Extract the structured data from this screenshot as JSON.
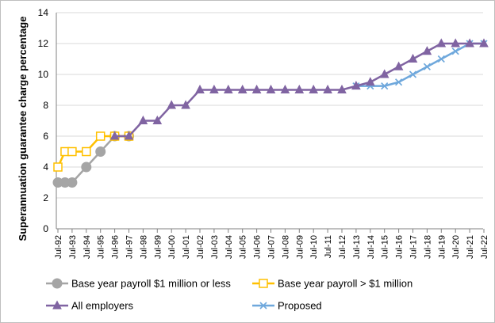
{
  "chart_data": {
    "type": "line",
    "ylabel": "Superannuation guarantee charge percentage",
    "xlabel": "",
    "ylim": [
      0,
      14
    ],
    "yticks": [
      0,
      2,
      4,
      6,
      8,
      10,
      12,
      14
    ],
    "grid": "horizontal",
    "legend_position": "bottom",
    "x_labels": [
      "Jul-92",
      "Jul-93",
      "Jul-94",
      "Jul-95",
      "Jul-96",
      "Jul-97",
      "Jul-98",
      "Jul-99",
      "Jul-00",
      "Jul-01",
      "Jul-02",
      "Jul-03",
      "Jul-04",
      "Jul-05",
      "Jul-06",
      "Jul-07",
      "Jul-08",
      "Jul-09",
      "Jul-10",
      "Jul-11",
      "Jul-12",
      "Jul-13",
      "Jul-14",
      "Jul-15",
      "Jul-16",
      "Jul-17",
      "Jul-18",
      "Jul-19",
      "Jul-20",
      "Jul-21",
      "Jul-22"
    ],
    "series": [
      {
        "name": "Base year payroll  $1 million or less",
        "color": "#a5a5a5",
        "marker": "circle",
        "points": [
          [
            "1992-07",
            3
          ],
          [
            "1993-01",
            3
          ],
          [
            "1993-07",
            3
          ],
          [
            "1994-07",
            4
          ],
          [
            "1995-07",
            5
          ],
          [
            "1996-07",
            6
          ],
          [
            "1997-07",
            6
          ]
        ]
      },
      {
        "name": "Base year payroll > $1 million",
        "color": "#ffc000",
        "marker": "square",
        "points": [
          [
            "1992-07",
            4
          ],
          [
            "1993-01",
            5
          ],
          [
            "1993-07",
            5
          ],
          [
            "1994-07",
            5
          ],
          [
            "1995-07",
            6
          ],
          [
            "1996-07",
            6
          ],
          [
            "1997-07",
            6
          ]
        ]
      },
      {
        "name": "All employers",
        "color": "#8064a2",
        "marker": "triangle",
        "points": [
          [
            "1996-07",
            6
          ],
          [
            "1997-07",
            6
          ],
          [
            "1998-07",
            7
          ],
          [
            "1999-07",
            7
          ],
          [
            "2000-07",
            8
          ],
          [
            "2001-07",
            8
          ],
          [
            "2002-07",
            9
          ],
          [
            "2003-07",
            9
          ],
          [
            "2004-07",
            9
          ],
          [
            "2005-07",
            9
          ],
          [
            "2006-07",
            9
          ],
          [
            "2007-07",
            9
          ],
          [
            "2008-07",
            9
          ],
          [
            "2009-07",
            9
          ],
          [
            "2010-07",
            9
          ],
          [
            "2011-07",
            9
          ],
          [
            "2012-07",
            9
          ],
          [
            "2013-07",
            9.25
          ],
          [
            "2014-07",
            9.5
          ],
          [
            "2015-07",
            10
          ],
          [
            "2016-07",
            10.5
          ],
          [
            "2017-07",
            11
          ],
          [
            "2018-07",
            11.5
          ],
          [
            "2019-07",
            12
          ],
          [
            "2020-07",
            12
          ],
          [
            "2021-07",
            12
          ],
          [
            "2022-07",
            12
          ]
        ]
      },
      {
        "name": "Proposed",
        "color": "#6fa8dc",
        "marker": "x",
        "points": [
          [
            "2013-07",
            9.25
          ],
          [
            "2014-07",
            9.25
          ],
          [
            "2015-07",
            9.25
          ],
          [
            "2016-07",
            9.5
          ],
          [
            "2017-07",
            10
          ],
          [
            "2018-07",
            10.5
          ],
          [
            "2019-07",
            11
          ],
          [
            "2020-07",
            11.5
          ],
          [
            "2021-07",
            12
          ],
          [
            "2022-07",
            12
          ]
        ]
      }
    ]
  }
}
